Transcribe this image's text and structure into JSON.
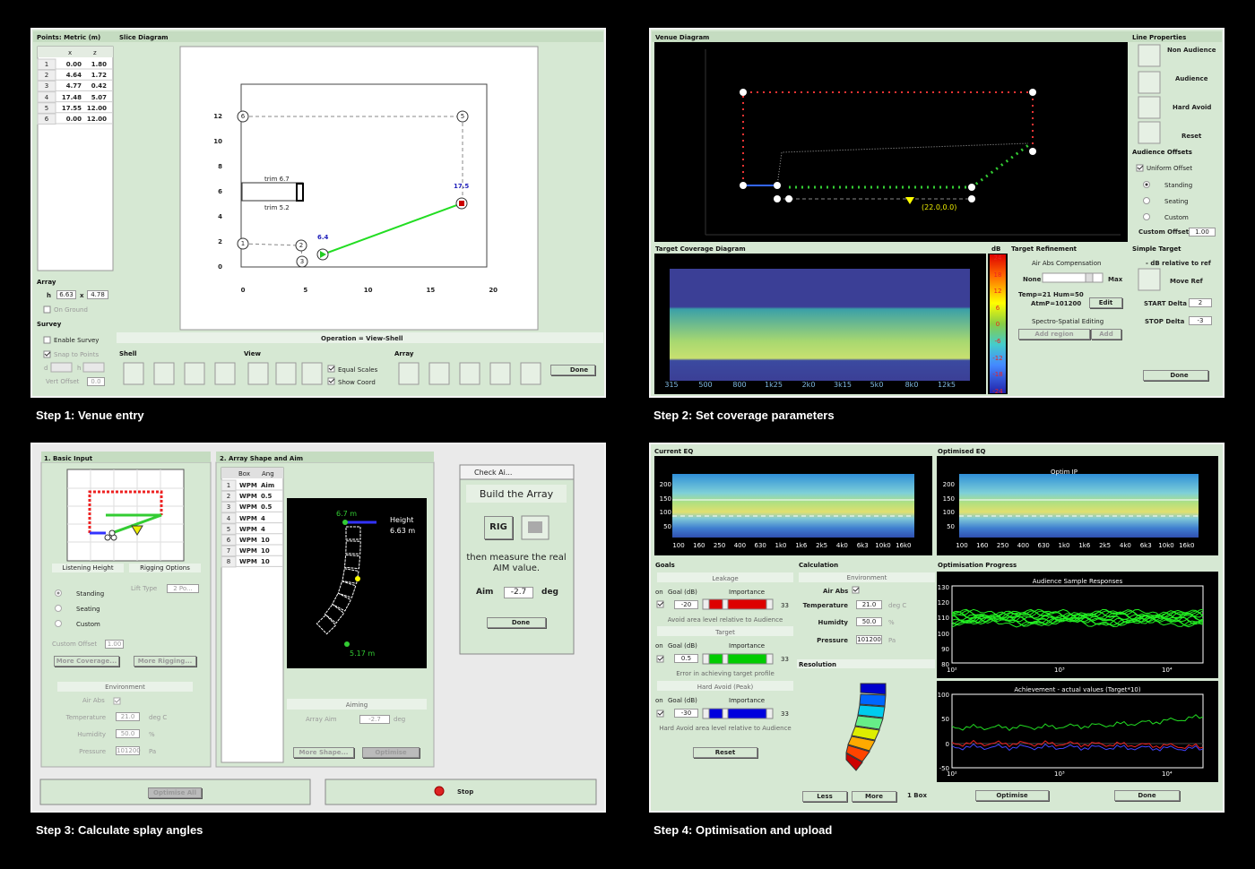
{
  "captions": [
    "Step 1: Venue entry",
    "Step 2: Set coverage parameters",
    "Step 3: Calculate splay angles",
    "Step 4: Optimisation and upload"
  ],
  "step1": {
    "points_title": "Points: Metric (m)",
    "points_header": [
      "x",
      "z"
    ],
    "points_rows": [
      [
        "1",
        "0.00",
        "1.80"
      ],
      [
        "2",
        "4.64",
        "1.72"
      ],
      [
        "3",
        "4.77",
        "0.42"
      ],
      [
        "4",
        "17.48",
        "5.07"
      ],
      [
        "5",
        "17.55",
        "12.00"
      ],
      [
        "6",
        "0.00",
        "12.00"
      ]
    ],
    "slice_title": "Slice Diagram",
    "slice_yticks": [
      "12",
      "10",
      "8",
      "6",
      "4",
      "2",
      "0"
    ],
    "slice_xticks": [
      "0",
      "5",
      "10",
      "15",
      "20"
    ],
    "slice_points": [
      "1",
      "2",
      "3",
      "4",
      "5",
      "6"
    ],
    "slice_annotations": [
      "trim 6.7",
      "trim 5.2",
      "17.5",
      "6.4"
    ],
    "operation": "Operation = View-Shell",
    "array_title": "Array",
    "array_fields": [
      "h",
      "6.63",
      "x",
      "4.78"
    ],
    "on_ground": "On Ground",
    "survey_title": "Survey",
    "survey_options": [
      "Enable Survey",
      "Snap to Points"
    ],
    "survey_fields": [
      "d",
      "h",
      "Vert Offset",
      "0.0"
    ],
    "groups": [
      "Shell",
      "View",
      "Array"
    ],
    "checks": [
      "Equal Scales",
      "Show Coord"
    ],
    "done": "Done"
  },
  "step2": {
    "venue_title": "Venue Diagram",
    "ref_point": "(22.0,0.0)",
    "line_title": "Line Properties",
    "line_options": [
      "Non Audience",
      "Audience",
      "Hard Avoid",
      "Reset"
    ],
    "offsets_title": "Audience Offsets",
    "uniform_offset": "Uniform Offset",
    "offset_options": [
      "Standing",
      "Seating",
      "Custom"
    ],
    "custom_offset_label": "Custom Offset",
    "custom_offset": "1.00",
    "coverage_title": "Target Coverage Diagram",
    "frequencies": [
      "315",
      "500",
      "800",
      "1k25",
      "2k0",
      "3k15",
      "5k0",
      "8k0",
      "12k5"
    ],
    "db_title": "dB",
    "db_scale": [
      "24",
      "18",
      "12",
      "6",
      "0",
      "-6",
      "-12",
      "-18",
      "-24"
    ],
    "refinement_title": "Target Refinement",
    "air_abs": "Air Abs Compensation",
    "slider_min": "None",
    "slider_max": "Max",
    "conditions": [
      "Temp=21  Hum=50",
      "AtmP=101200"
    ],
    "edit": "Edit",
    "spectro": "Spectro-Spatial Editing",
    "add_region": "Add region",
    "add": "Add",
    "simple_title": "Simple Target",
    "relative": "- dB relative to ref",
    "move_ref": "Move Ref",
    "start_label": "START Delta",
    "start": "2",
    "stop_label": "STOP Delta",
    "stop": "-3",
    "done": "Done"
  },
  "step3": {
    "basic_title": "1. Basic Input",
    "tabs": [
      "Listening Height",
      "Rigging Options"
    ],
    "height_options": [
      "Standing",
      "Seating",
      "Custom"
    ],
    "lift_label": "Lift Type",
    "lift_value": "2 Po...",
    "custom_offset_label": "Custom Offset",
    "custom_offset": "1.00",
    "more_coverage": "More Coverage...",
    "more_rigging": "More Rigging...",
    "environment_title": "Environment",
    "air_abs": "Air Abs",
    "env_labels": [
      "Temperature",
      "Humidity",
      "Pressure"
    ],
    "env_values": [
      "21.0",
      "50.0",
      "101200"
    ],
    "env_units": [
      "deg C",
      "%",
      "Pa"
    ],
    "shape_title": "2. Array Shape and Aim",
    "box_header": [
      "Box",
      "Ang"
    ],
    "box_rows": [
      [
        "1",
        "WPM",
        "Aim"
      ],
      [
        "2",
        "WPM",
        "0.5"
      ],
      [
        "3",
        "WPM",
        "0.5"
      ],
      [
        "4",
        "WPM",
        "4"
      ],
      [
        "5",
        "WPM",
        "4"
      ],
      [
        "6",
        "WPM",
        "10"
      ],
      [
        "7",
        "WPM",
        "10"
      ],
      [
        "8",
        "WPM",
        "10"
      ]
    ],
    "plot_labels": [
      "6.7 m",
      "Height",
      "6.63 m",
      "5.17 m"
    ],
    "aiming_title": "Aiming",
    "array_aim_label": "Array Aim",
    "array_aim": "-2.7",
    "array_aim_unit": "deg",
    "more_shape": "More Shape...",
    "optimise": "Optimise",
    "dialog": {
      "title": "Check Ai...",
      "heading": "Build the Array",
      "rig": "RIG",
      "instruction": "then measure the real AIM value.",
      "aim_label": "Aim",
      "aim": "-2.7",
      "aim_unit": "deg",
      "done": "Done"
    },
    "optimise_all": "Optimise All",
    "stop": "Stop"
  },
  "step4": {
    "current_title": "Current EQ",
    "optimised_title": "Optimised EQ",
    "optim_label": "Optim IP",
    "eq_yticks": [
      "200",
      "150",
      "100",
      "50"
    ],
    "eq_xticks": [
      "100",
      "160",
      "250",
      "400",
      "630",
      "1k0",
      "1k6",
      "2k5",
      "4k0",
      "6k3",
      "10k0",
      "16k0"
    ],
    "goals_title": "Goals",
    "goals": [
      {
        "name": "Leakage",
        "on": "on",
        "goal_label": "Goal (dB)",
        "importance_label": "Importance",
        "goal": "-20",
        "importance": "33",
        "description": "Avoid area level relative to Audience"
      },
      {
        "name": "Target",
        "on": "on",
        "goal_label": "Goal (dB)",
        "importance_label": "Importance",
        "goal": "0.5",
        "importance": "33",
        "description": "Error in achieving target profile"
      },
      {
        "name": "Hard Avoid  (Peak)",
        "on": "on",
        "goal_label": "Goal (dB)",
        "importance_label": "Importance",
        "goal": "-30",
        "importance": "33",
        "description": "Hard Avoid area level relative to Audience"
      }
    ],
    "reset": "Reset",
    "calc_title": "Calculation",
    "environment_title": "Environment",
    "air_abs": "Air Abs",
    "env_labels": [
      "Temperature",
      "Humidty",
      "Pressure"
    ],
    "env_values": [
      "21.0",
      "50.0",
      "101200"
    ],
    "env_units": [
      "deg C",
      "%",
      "Pa"
    ],
    "resolution": "Resolution",
    "progress_title": "Optimisation Progress",
    "responses_title": "Audience Sample Responses",
    "responses_yticks": [
      "130",
      "120",
      "110",
      "100",
      "90",
      "80"
    ],
    "achievement_title": "Achievement - actual values (Target*10)",
    "achievement_yticks": [
      "100",
      "50",
      "0",
      "-50"
    ],
    "freq_xticks": [
      "10²",
      "10³",
      "10⁴"
    ],
    "less": "Less",
    "more": "More",
    "boxes": "1 Box",
    "optimise": "Optimise",
    "done": "Done"
  }
}
